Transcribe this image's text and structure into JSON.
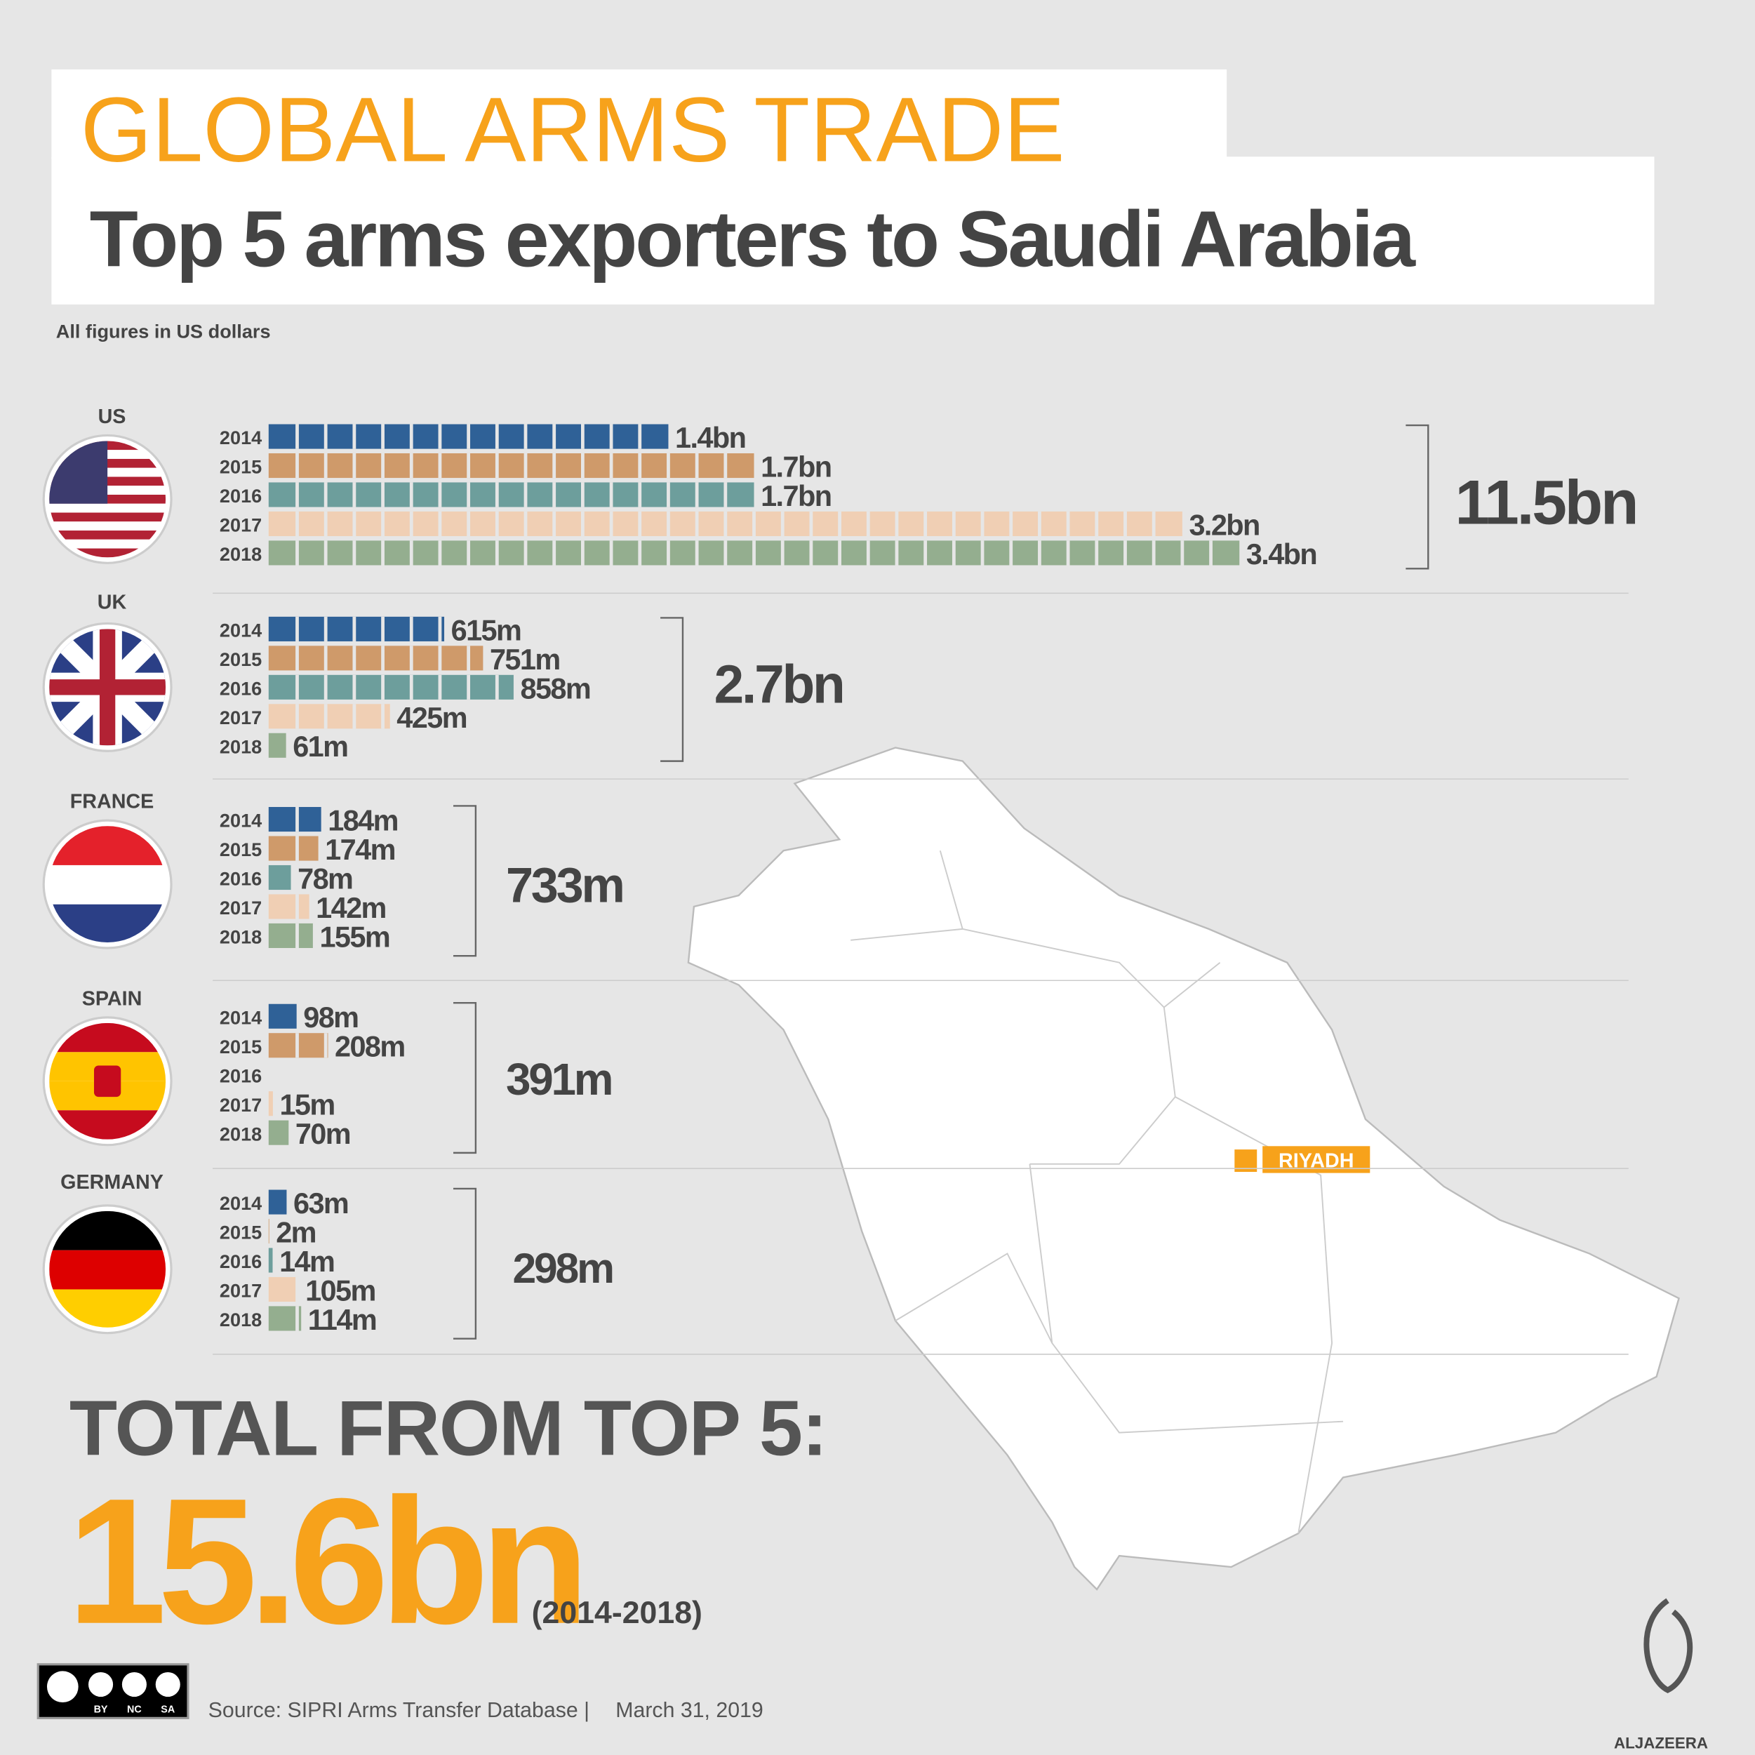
{
  "title": "GLOBAL ARMS TRADE",
  "subtitle": "Top 5 arms exporters to Saudi Arabia",
  "note": "All figures in US dollars",
  "chart_data": [
    {
      "type": "bar",
      "title": "US",
      "categories": [
        "2014",
        "2015",
        "2016",
        "2017",
        "2018"
      ],
      "values": [
        1400,
        1700,
        1700,
        3200,
        3400
      ],
      "value_labels": [
        "1.4bn",
        "1.7bn",
        "1.7bn",
        "3.2bn",
        "3.4bn"
      ],
      "colors": [
        "#2f6197",
        "#cf9a6a",
        "#6d9e9c",
        "#f0cfb4",
        "#94ae8f"
      ],
      "total": "11.5bn"
    },
    {
      "type": "bar",
      "title": "UK",
      "categories": [
        "2014",
        "2015",
        "2016",
        "2017",
        "2018"
      ],
      "values": [
        615,
        751,
        858,
        425,
        61
      ],
      "value_labels": [
        "615m",
        "751m",
        "858m",
        "425m",
        "61m"
      ],
      "colors": [
        "#2f6197",
        "#cf9a6a",
        "#6d9e9c",
        "#f0cfb4",
        "#94ae8f"
      ],
      "total": "2.7bn"
    },
    {
      "type": "bar",
      "title": "FRANCE",
      "categories": [
        "2014",
        "2015",
        "2016",
        "2017",
        "2018"
      ],
      "values": [
        184,
        174,
        78,
        142,
        155
      ],
      "value_labels": [
        "184m",
        "174m",
        "78m",
        "142m",
        "155m"
      ],
      "colors": [
        "#2f6197",
        "#cf9a6a",
        "#6d9e9c",
        "#f0cfb4",
        "#94ae8f"
      ],
      "total": "733m"
    },
    {
      "type": "bar",
      "title": "SPAIN",
      "categories": [
        "2014",
        "2015",
        "2016",
        "2017",
        "2018"
      ],
      "values": [
        98,
        208,
        null,
        15,
        70
      ],
      "value_labels": [
        "98m",
        "208m",
        null,
        "15m",
        "70m"
      ],
      "colors": [
        "#2f6197",
        "#cf9a6a",
        "#6d9e9c",
        "#f0cfb4",
        "#94ae8f"
      ],
      "total": "391m"
    },
    {
      "type": "bar",
      "title": "GERMANY",
      "categories": [
        "2014",
        "2015",
        "2016",
        "2017",
        "2018"
      ],
      "values": [
        63,
        2,
        14,
        105,
        114
      ],
      "value_labels": [
        "63m",
        "2m",
        "14m",
        "105m",
        "114m"
      ],
      "colors": [
        "#2f6197",
        "#cf9a6a",
        "#6d9e9c",
        "#f0cfb4",
        "#94ae8f"
      ],
      "total": "298m"
    }
  ],
  "total_heading": "TOTAL FROM TOP 5:",
  "grand_total": "15.6bn",
  "period": "(2014-2018)",
  "city": "RIYADH",
  "source": "Source: SIPRI Arms Transfer Database |",
  "date": "March 31, 2019",
  "license": [
    "BY",
    "NC",
    "SA"
  ],
  "brand": "ALJAZEERA"
}
